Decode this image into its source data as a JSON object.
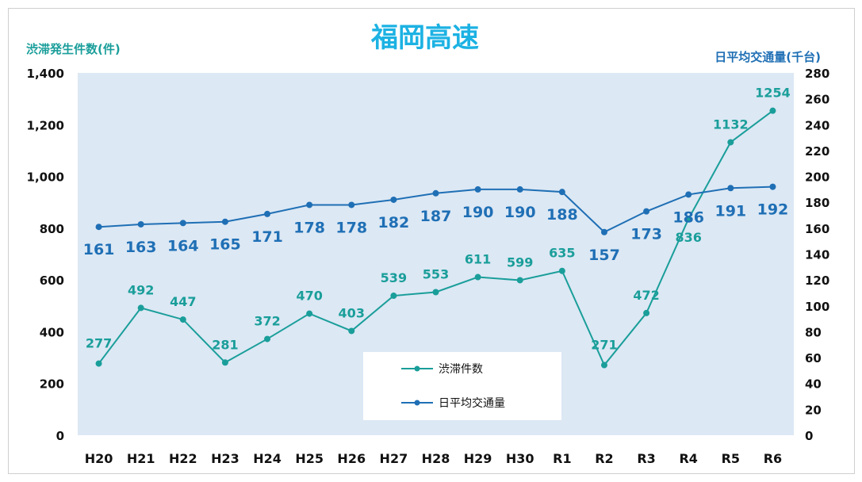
{
  "chart_data": {
    "type": "line",
    "title": "福岡高速",
    "ylabel_left": "渋滞発生件数(件)",
    "ylabel_right": "日平均交通量(千台)",
    "categories": [
      "H20",
      "H21",
      "H22",
      "H23",
      "H24",
      "H25",
      "H26",
      "H27",
      "H28",
      "H29",
      "H30",
      "R1",
      "R2",
      "R3",
      "R4",
      "R5",
      "R6"
    ],
    "left_axis": {
      "min": 0,
      "max": 1400,
      "step": 200,
      "tick_labels": [
        "0",
        "200",
        "400",
        "600",
        "800",
        "1,000",
        "1,200",
        "1,400"
      ]
    },
    "right_axis": {
      "min": 0,
      "max": 280,
      "step": 20,
      "tick_labels": [
        "0",
        "20",
        "40",
        "60",
        "80",
        "100",
        "120",
        "140",
        "160",
        "180",
        "200",
        "220",
        "240",
        "260",
        "280"
      ]
    },
    "series": [
      {
        "name": "渋滞件数",
        "axis": "left",
        "color": "#1a9e9a",
        "label_color": "#1a9e9a",
        "values": [
          277,
          492,
          447,
          281,
          372,
          470,
          403,
          539,
          553,
          611,
          599,
          635,
          271,
          472,
          836,
          1132,
          1254
        ]
      },
      {
        "name": "日平均交通量",
        "axis": "right",
        "color": "#1f6fb5",
        "label_color": "#1f6fb5",
        "values": [
          161,
          163,
          164,
          165,
          171,
          178,
          178,
          182,
          187,
          190,
          190,
          188,
          157,
          173,
          186,
          191,
          192
        ]
      }
    ],
    "legend": {
      "placement": "bottom-center-inside"
    },
    "plot_background": "#dce8f4"
  }
}
